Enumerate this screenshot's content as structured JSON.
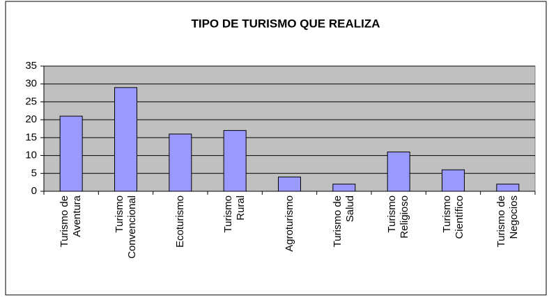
{
  "chart_data": {
    "type": "bar",
    "title": "TIPO DE TURISMO QUE REALIZA",
    "categories": [
      "Turismo de\nAventura",
      "Turismo\nConvencional",
      "Ecoturismo",
      "Turismo\nRural",
      "Agroturismo",
      "Turismo de\nSalud",
      "Turismo\nReligioso",
      "Turismo\nCientífico",
      "Turismo de\nNegocios"
    ],
    "values": [
      21,
      29,
      16,
      17,
      4,
      2,
      11,
      6,
      2
    ],
    "color": "#9999ff",
    "ylim": [
      0,
      35
    ],
    "yticks": [
      0,
      5,
      10,
      15,
      20,
      25,
      30,
      35
    ],
    "grid": true
  }
}
